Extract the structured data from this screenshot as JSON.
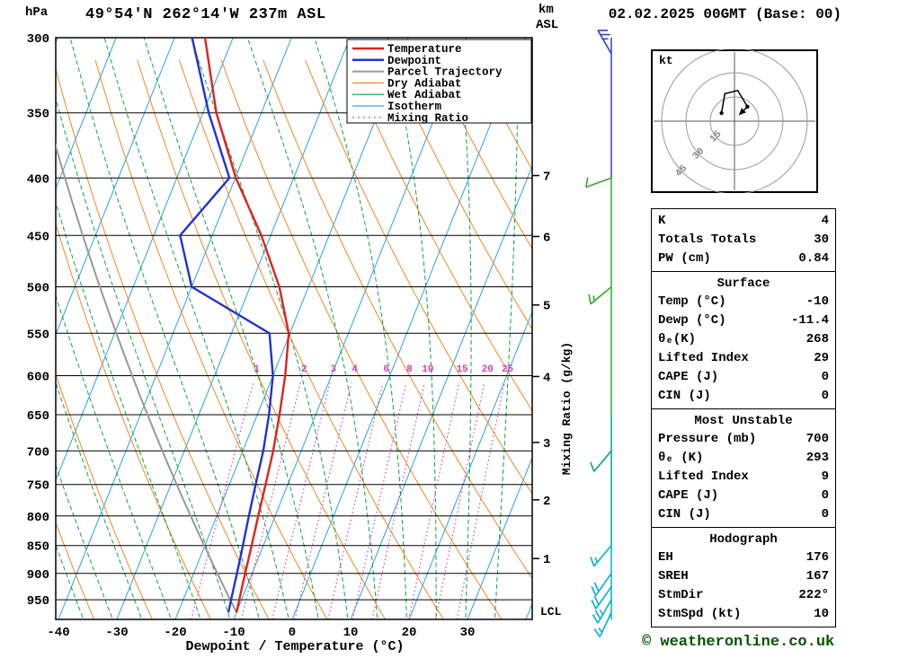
{
  "header": {
    "pressure_unit": "hPa",
    "title": "49°54'N 262°14'W 237m ASL",
    "km_label": "km",
    "asl_label": "ASL",
    "datetime": "02.02.2025 00GMT (Base: 00)"
  },
  "skewt": {
    "xlabel": "Dewpoint / Temperature (°C)",
    "mixing_axis_label": "Mixing Ratio (g/kg)",
    "lcl_label": "LCL",
    "lcl_p": 971,
    "pressure_ticks": [
      300,
      350,
      400,
      450,
      500,
      550,
      600,
      650,
      700,
      750,
      800,
      850,
      900,
      950
    ],
    "temp_ticks": [
      -40,
      -30,
      -20,
      -10,
      0,
      10,
      20,
      30
    ],
    "km_ticks": [
      {
        "km": 7,
        "p": 398
      },
      {
        "km": 6,
        "p": 451
      },
      {
        "km": 5,
        "p": 519
      },
      {
        "km": 4,
        "p": 601
      },
      {
        "km": 3,
        "p": 688
      },
      {
        "km": 2,
        "p": 774
      },
      {
        "km": 1,
        "p": 873
      }
    ],
    "mixing_ratio_values": [
      1,
      2,
      3,
      4,
      6,
      8,
      10,
      15,
      20,
      25
    ],
    "legend": [
      {
        "label": "Temperature",
        "color": "#dd2222",
        "width": 2.5,
        "dash": ""
      },
      {
        "label": "Dewpoint",
        "color": "#2233cc",
        "width": 2.5,
        "dash": ""
      },
      {
        "label": "Parcel Trajectory",
        "color": "#999999",
        "width": 2,
        "dash": ""
      },
      {
        "label": "Dry Adiabat",
        "color": "#ee8822",
        "width": 1.2,
        "dash": ""
      },
      {
        "label": "Wet Adiabat",
        "color": "#11a04a",
        "width": 1.2,
        "dash": ""
      },
      {
        "label": "Isotherm",
        "color": "#2da3dc",
        "width": 1.2,
        "dash": ""
      },
      {
        "label": "Mixing Ratio",
        "color": "#cc44bb",
        "width": 1.2,
        "dash": "2 4"
      }
    ],
    "colors": {
      "isotherm": "#2da3dc",
      "dry_adiabat": "#ee8822",
      "wet_adiabat": "#11a04a",
      "mixing_ratio": "#cc44bb",
      "temperature": "#dd2222",
      "dewpoint": "#2233cc",
      "parcel": "#999999",
      "grid": "#000000",
      "wind_blue": "#3344cc",
      "wind_green": "#33aa33",
      "wind_teal": "#00a090",
      "wind_cyan": "#00b0d0"
    }
  },
  "chart_data": {
    "type": "line",
    "title": "Skew-T log-P sounding 49°54'N 262°14'W 237m ASL 02.02.2025 00GMT",
    "x_axis": {
      "label": "Dewpoint / Temperature (°C)",
      "range": [
        -40,
        40
      ]
    },
    "y_axis": {
      "label": "hPa",
      "range": [
        989,
        300
      ],
      "scale": "log"
    },
    "series": [
      {
        "name": "Temperature",
        "color": "#dd2222",
        "points": [
          [
            975,
            -10
          ],
          [
            950,
            -10.4
          ],
          [
            925,
            -10.8
          ],
          [
            900,
            -11.2
          ],
          [
            850,
            -12.0
          ],
          [
            800,
            -12.9
          ],
          [
            750,
            -13.8
          ],
          [
            700,
            -14.8
          ],
          [
            650,
            -16.2
          ],
          [
            600,
            -17.9
          ],
          [
            550,
            -20.2
          ],
          [
            500,
            -25.0
          ],
          [
            450,
            -31.6
          ],
          [
            400,
            -39.9
          ],
          [
            350,
            -47.7
          ],
          [
            300,
            -54.8
          ]
        ]
      },
      {
        "name": "Dewpoint",
        "color": "#2233cc",
        "points": [
          [
            975,
            -11.4
          ],
          [
            950,
            -11.8
          ],
          [
            925,
            -12.2
          ],
          [
            900,
            -12.6
          ],
          [
            850,
            -13.5
          ],
          [
            800,
            -14.5
          ],
          [
            750,
            -15.5
          ],
          [
            700,
            -16.5
          ],
          [
            650,
            -18.0
          ],
          [
            600,
            -20.0
          ],
          [
            550,
            -23.5
          ],
          [
            500,
            -40.0
          ],
          [
            450,
            -45.5
          ],
          [
            400,
            -41.0
          ],
          [
            350,
            -49.0
          ],
          [
            300,
            -57.0
          ]
        ]
      }
    ],
    "parcel": {
      "name": "Parcel Trajectory",
      "surface_p": 975,
      "surface_t": -10
    }
  },
  "wind_column": {
    "x": 680,
    "segments": [
      {
        "p1": 300,
        "p2": 400,
        "color": "#3344cc"
      },
      {
        "p1": 400,
        "p2": 500,
        "color": "#33aa33"
      },
      {
        "p1": 500,
        "p2": 650,
        "color": "#33aa33"
      },
      {
        "p1": 650,
        "p2": 850,
        "color": "#00a090"
      },
      {
        "p1": 850,
        "p2": 989,
        "color": "#00b0d0"
      }
    ],
    "barbs": [
      {
        "p": 310,
        "dir": 330,
        "spd": 25,
        "color": "#3344cc"
      },
      {
        "p": 400,
        "dir": 250,
        "spd": 10,
        "color": "#33aa33"
      },
      {
        "p": 500,
        "dir": 230,
        "spd": 15,
        "color": "#33aa33"
      },
      {
        "p": 700,
        "dir": 220,
        "spd": 10,
        "color": "#00a090"
      },
      {
        "p": 850,
        "dir": 220,
        "spd": 15,
        "color": "#00b0d0"
      },
      {
        "p": 900,
        "dir": 215,
        "spd": 20,
        "color": "#00b0d0"
      },
      {
        "p": 925,
        "dir": 215,
        "spd": 20,
        "color": "#00b0d0"
      },
      {
        "p": 950,
        "dir": 210,
        "spd": 25,
        "color": "#00b0d0"
      },
      {
        "p": 975,
        "dir": 205,
        "spd": 15,
        "color": "#00b0d0"
      }
    ]
  },
  "hodograph": {
    "unit_label": "kt",
    "rings": [
      15,
      30,
      45
    ],
    "trace_kt": [
      [
        -8,
        5
      ],
      [
        -6,
        17
      ],
      [
        2,
        19
      ],
      [
        8,
        9
      ],
      [
        5,
        6
      ]
    ]
  },
  "table": {
    "sections": [
      {
        "header": null,
        "rows": [
          [
            "K",
            "4"
          ],
          [
            "Totals Totals",
            "30"
          ],
          [
            "PW (cm)",
            "0.84"
          ]
        ]
      },
      {
        "header": "Surface",
        "rows": [
          [
            "Temp (°C)",
            "-10"
          ],
          [
            "Dewp (°C)",
            "-11.4"
          ],
          [
            "θₑ(K)",
            "268"
          ],
          [
            "Lifted Index",
            "29"
          ],
          [
            "CAPE (J)",
            "0"
          ],
          [
            "CIN (J)",
            "0"
          ]
        ]
      },
      {
        "header": "Most Unstable",
        "rows": [
          [
            "Pressure (mb)",
            "700"
          ],
          [
            "θₑ (K)",
            "293"
          ],
          [
            "Lifted Index",
            "9"
          ],
          [
            "CAPE (J)",
            "0"
          ],
          [
            "CIN (J)",
            "0"
          ]
        ]
      },
      {
        "header": "Hodograph",
        "rows": [
          [
            "EH",
            "176"
          ],
          [
            "SREH",
            "167"
          ],
          [
            "StmDir",
            "222°"
          ],
          [
            "StmSpd (kt)",
            "10"
          ]
        ]
      }
    ]
  },
  "footer": {
    "copyright": "© weatheronline.co.uk"
  }
}
